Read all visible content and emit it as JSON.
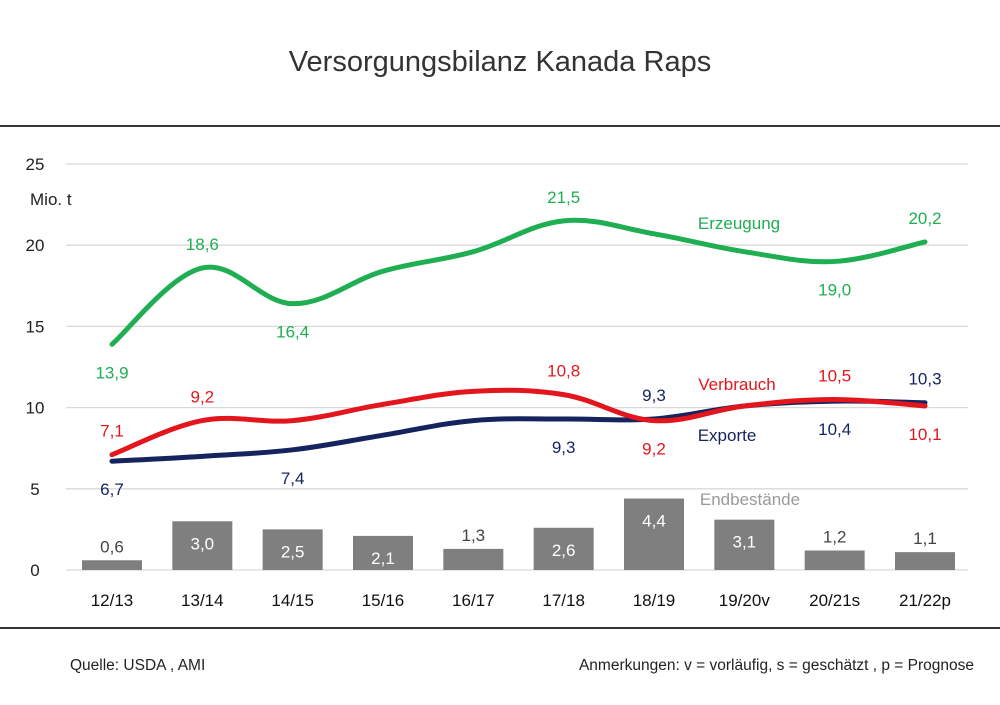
{
  "title": "Versorgungsbilanz Kanada Raps",
  "footer": {
    "source": "Quelle: USDA  , AMI",
    "notes": "Anmerkungen: v = vorläufig, s = geschätzt , p = Prognose"
  },
  "chart_data": {
    "type": "line",
    "ylabel": "Mio. t",
    "ylim": [
      0,
      25
    ],
    "yticks": [
      "0",
      "5",
      "10",
      "15",
      "20",
      "25"
    ],
    "grid": true,
    "categories": [
      "12/13",
      "13/14",
      "14/15",
      "15/16",
      "16/17",
      "17/18",
      "18/19",
      "19/20v",
      "20/21s",
      "21/22p"
    ],
    "series": [
      {
        "name": "Erzeugung",
        "kind": "line",
        "color": "#1fae52",
        "values": [
          13.9,
          18.6,
          16.4,
          18.4,
          19.6,
          21.5,
          20.7,
          19.6,
          19.0,
          20.2
        ],
        "labels": [
          "13,9",
          "18,6",
          "16,4",
          null,
          null,
          "21,5",
          null,
          null,
          "19,0",
          "20,2"
        ],
        "label_pos": [
          "below",
          "above",
          "below",
          null,
          null,
          "above",
          null,
          null,
          "below",
          "above"
        ]
      },
      {
        "name": "Verbrauch",
        "kind": "line",
        "color": "#e3161e",
        "values": [
          7.1,
          9.2,
          9.2,
          10.2,
          11.0,
          10.8,
          9.2,
          10.1,
          10.5,
          10.1
        ],
        "labels": [
          "7,1",
          "9,2",
          null,
          null,
          null,
          "10,8",
          "9,2",
          null,
          "10,5",
          "10,1"
        ],
        "label_pos": [
          "above",
          "above",
          null,
          null,
          null,
          "above",
          "below",
          null,
          "above",
          "below"
        ]
      },
      {
        "name": "Exporte",
        "kind": "line",
        "color": "#15235e",
        "values": [
          6.7,
          7.0,
          7.4,
          8.3,
          9.2,
          9.3,
          9.3,
          10.1,
          10.4,
          10.3
        ],
        "labels": [
          "6,7",
          null,
          "7,4",
          null,
          null,
          "9,3",
          "9,3",
          null,
          "10,4",
          "10,3"
        ],
        "label_pos": [
          "below",
          null,
          "below",
          null,
          null,
          "below",
          "above",
          null,
          "below",
          "above"
        ]
      },
      {
        "name": "Endbestände",
        "kind": "bar",
        "color": "#7f7f7f",
        "values": [
          0.6,
          3.0,
          2.5,
          2.1,
          1.3,
          2.6,
          4.4,
          3.1,
          1.2,
          1.1
        ],
        "labels": [
          "0,6",
          "3,0",
          "2,5",
          "2,1",
          "1,3",
          "2,6",
          "4,4",
          "3,1",
          "1,2",
          "1,1"
        ]
      }
    ]
  }
}
